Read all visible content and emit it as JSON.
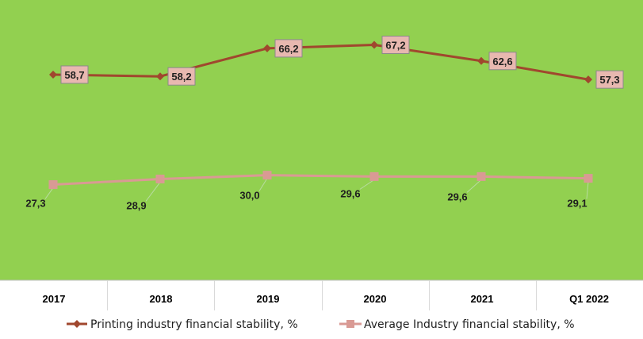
{
  "chart_data": {
    "type": "line",
    "categories": [
      "2017",
      "2018",
      "2019",
      "2020",
      "2021",
      "Q1 2022"
    ],
    "series": [
      {
        "name": "Printing industry financial stability, %",
        "values": [
          58.7,
          58.2,
          66.2,
          67.2,
          62.6,
          57.3
        ],
        "labels": [
          "58,7",
          "58,2",
          "66,2",
          "67,2",
          "62,6",
          "57,3"
        ],
        "color": "#a0472e",
        "marker": "diamond",
        "label_box_color": "#e8b8b0"
      },
      {
        "name": "Average Industry financial stability, %",
        "values": [
          27.3,
          28.9,
          30.0,
          29.6,
          29.6,
          29.1
        ],
        "labels": [
          "27,3",
          "28,9",
          "30,0",
          "29,6",
          "29,6",
          "29,1"
        ],
        "color": "#d99a94",
        "marker": "square"
      }
    ],
    "ylim": [
      0,
      80
    ],
    "grid": false,
    "legend_position": "bottom",
    "plot_background": "#92d050",
    "axis_area_background": "#ffffff"
  }
}
